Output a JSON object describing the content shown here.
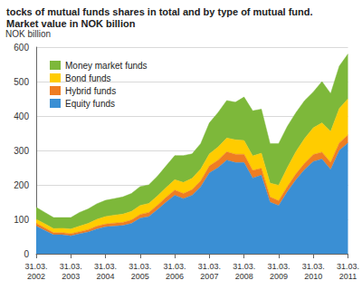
{
  "chart_data": {
    "type": "area",
    "title": "tocks of mutual funds shares in total and by type of mutual fund.",
    "subtitle": "Market value in NOK billion",
    "y_label": "NOK billion",
    "stacked": true,
    "grid": true,
    "legend": "top-left",
    "categories": [
      "31.03.\n2002",
      null,
      null,
      null,
      "31.03.\n2003",
      null,
      null,
      null,
      "31.03.\n2004",
      null,
      null,
      null,
      "31.03.\n2005",
      null,
      null,
      null,
      "31.03.\n2006",
      null,
      null,
      null,
      "31.03.\n2007",
      null,
      null,
      null,
      "31.03.\n2008",
      null,
      null,
      null,
      "31.03.\n2009",
      null,
      null,
      null,
      "31.03.\n2010",
      null,
      null,
      null,
      "31.03.\n2011"
    ],
    "ylim": [
      0,
      600
    ],
    "yticks": [
      0,
      100,
      200,
      300,
      400,
      500,
      600
    ],
    "series": [
      {
        "name": "Equity funds",
        "color": "#3a8fd4",
        "values": [
          80,
          68,
          55,
          55,
          52,
          58,
          63,
          72,
          78,
          80,
          82,
          88,
          103,
          108,
          128,
          150,
          170,
          160,
          170,
          195,
          235,
          250,
          272,
          265,
          265,
          220,
          228,
          150,
          140,
          180,
          215,
          245,
          268,
          275,
          245,
          300,
          322
        ]
      },
      {
        "name": "Hybrid funds",
        "color": "#ef7d22",
        "values": [
          8,
          7,
          6,
          6,
          6,
          6,
          7,
          8,
          8,
          9,
          9,
          10,
          11,
          12,
          13,
          14,
          15,
          15,
          16,
          17,
          20,
          22,
          24,
          24,
          24,
          22,
          20,
          15,
          14,
          15,
          17,
          18,
          20,
          20,
          20,
          22,
          23
        ]
      },
      {
        "name": "Bond funds",
        "color": "#ffcc00",
        "values": [
          12,
          12,
          12,
          13,
          14,
          16,
          18,
          20,
          22,
          23,
          24,
          25,
          26,
          26,
          27,
          28,
          30,
          32,
          33,
          34,
          35,
          38,
          40,
          42,
          40,
          42,
          44,
          40,
          45,
          55,
          65,
          72,
          78,
          85,
          90,
          100,
          105
        ]
      },
      {
        "name": "Money market funds",
        "color": "#7db83a",
        "values": [
          35,
          33,
          32,
          31,
          33,
          40,
          42,
          45,
          47,
          48,
          50,
          52,
          55,
          54,
          57,
          63,
          70,
          78,
          71,
          74,
          90,
          100,
          109,
          109,
          126,
          131,
          128,
          115,
          121,
          120,
          113,
          110,
          104,
          120,
          110,
          123,
          130
        ]
      }
    ]
  }
}
